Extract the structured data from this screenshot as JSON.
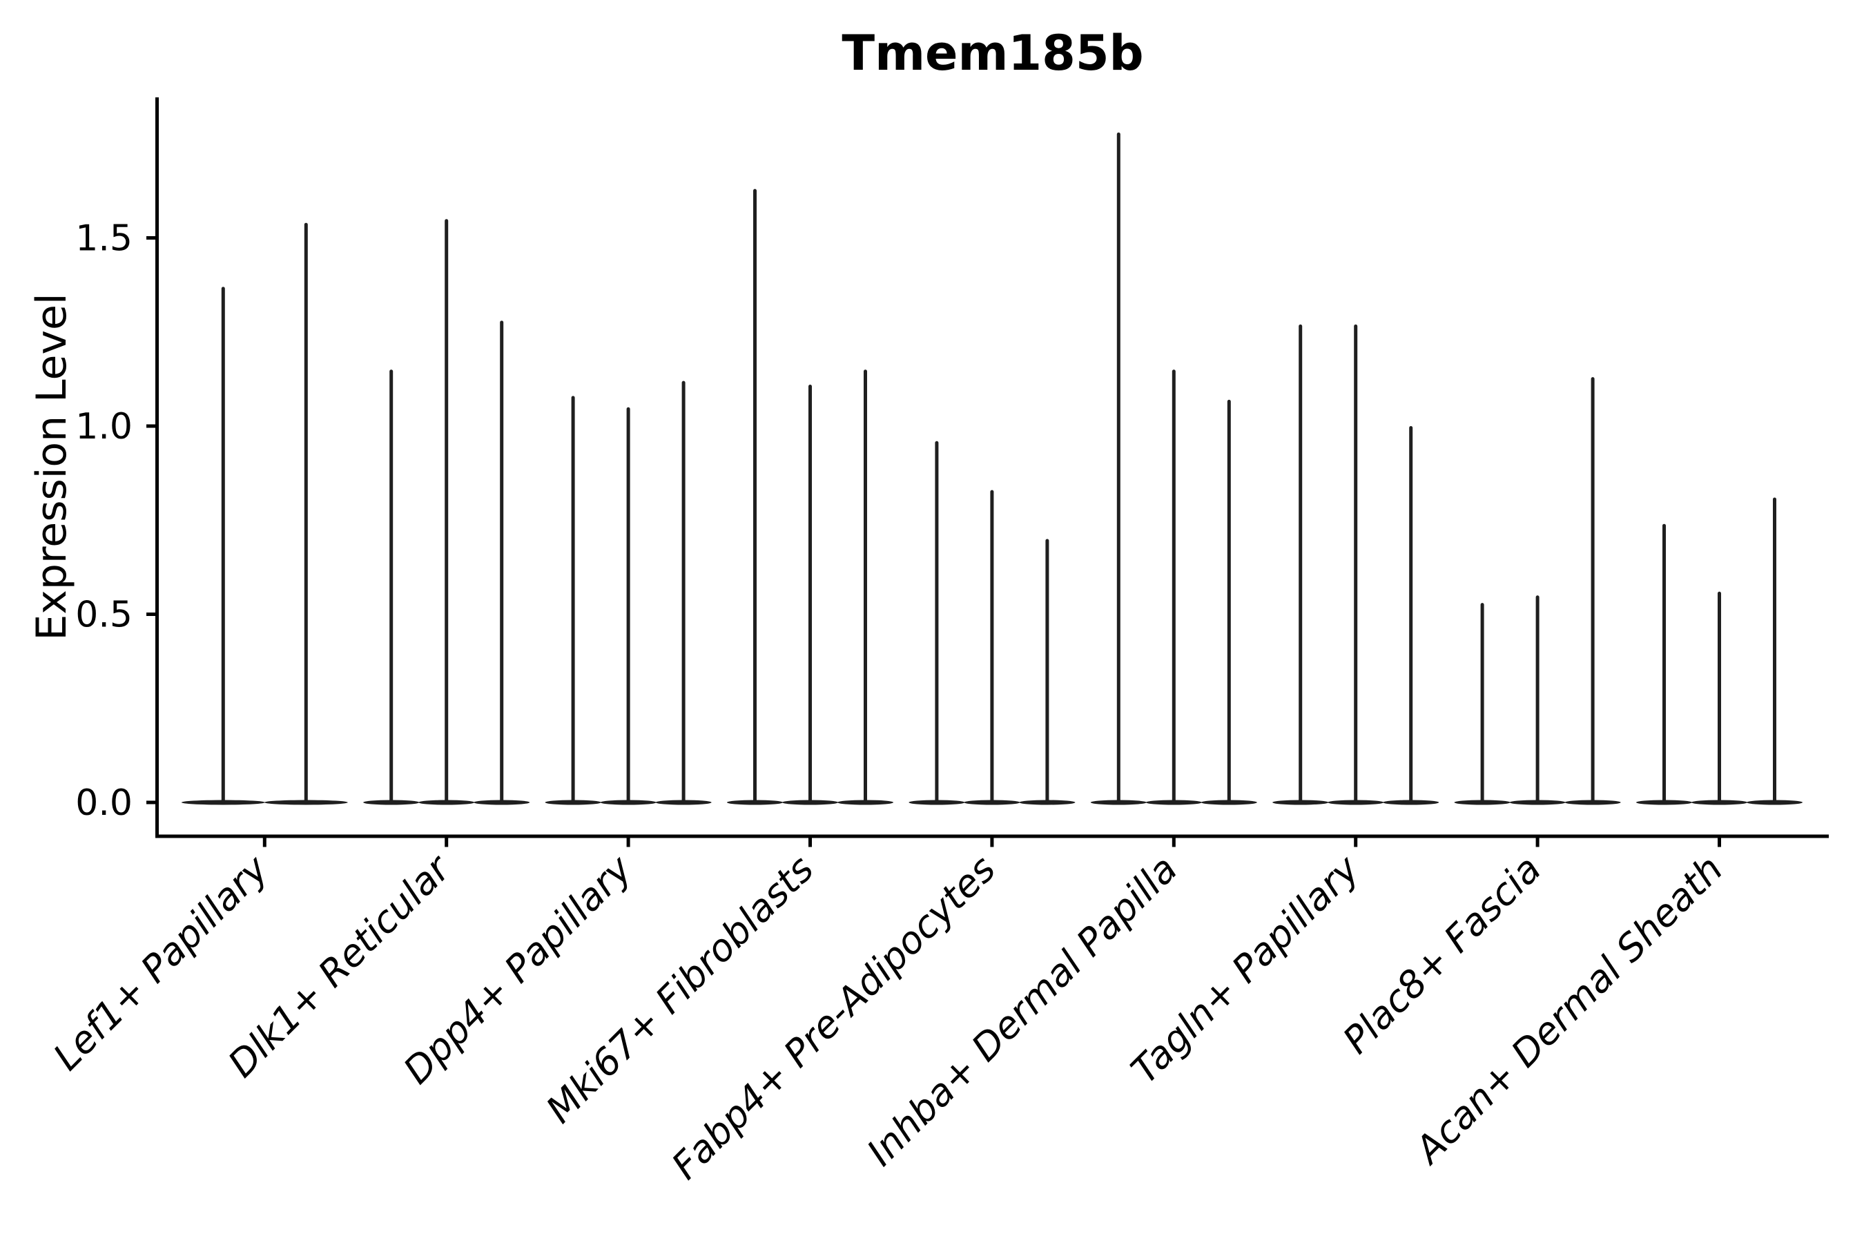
{
  "figure": {
    "title": "Tmem185b",
    "y_axis_label": "Expression Level"
  },
  "chart_data": {
    "type": "violin",
    "title": "Tmem185b",
    "xlabel": "",
    "ylabel": "Expression Level",
    "ylim": [
      -0.09,
      1.87
    ],
    "grid": false,
    "legend": false,
    "background_color": "#ffffff",
    "axis_color": "#000000",
    "violin_color": "#1f1f1f",
    "violin_baseline_value": 0.0,
    "yticks": [
      {
        "label": "0.0",
        "value": 0.0
      },
      {
        "label": "0.5",
        "value": 0.5
      },
      {
        "label": "1.0",
        "value": 1.0
      },
      {
        "label": "1.5",
        "value": 1.5
      }
    ],
    "categories": [
      "Lef1+ Papillary",
      "Dlk1+ Reticular",
      "Dpp4+ Papillary",
      "Mki67+ Fibroblasts",
      "Fabp4+ Pre-Adipocytes",
      "Inhba+ Dermal Papilla",
      "Tagln+ Papillary",
      "Plac8+ Fascia",
      "Acan+ Dermal Sheath"
    ],
    "groups": [
      {
        "category": "Lef1+ Papillary",
        "violin_peaks": [
          1.37,
          1.54
        ]
      },
      {
        "category": "Dlk1+ Reticular",
        "violin_peaks": [
          1.15,
          1.55,
          1.28
        ]
      },
      {
        "category": "Dpp4+ Papillary",
        "violin_peaks": [
          1.08,
          1.05,
          1.12
        ]
      },
      {
        "category": "Mki67+ Fibroblasts",
        "violin_peaks": [
          1.63,
          1.11,
          1.15
        ]
      },
      {
        "category": "Fabp4+ Pre-Adipocytes",
        "violin_peaks": [
          0.96,
          0.83,
          0.7
        ]
      },
      {
        "category": "Inhba+ Dermal Papilla",
        "violin_peaks": [
          1.78,
          1.15,
          1.07
        ]
      },
      {
        "category": "Tagln+ Papillary",
        "violin_peaks": [
          1.27,
          1.27,
          1.0
        ]
      },
      {
        "category": "Plac8+ Fascia",
        "violin_peaks": [
          0.53,
          0.55,
          1.13
        ]
      },
      {
        "category": "Acan+ Dermal Sheath",
        "violin_peaks": [
          0.74,
          0.56,
          0.81
        ]
      }
    ]
  }
}
